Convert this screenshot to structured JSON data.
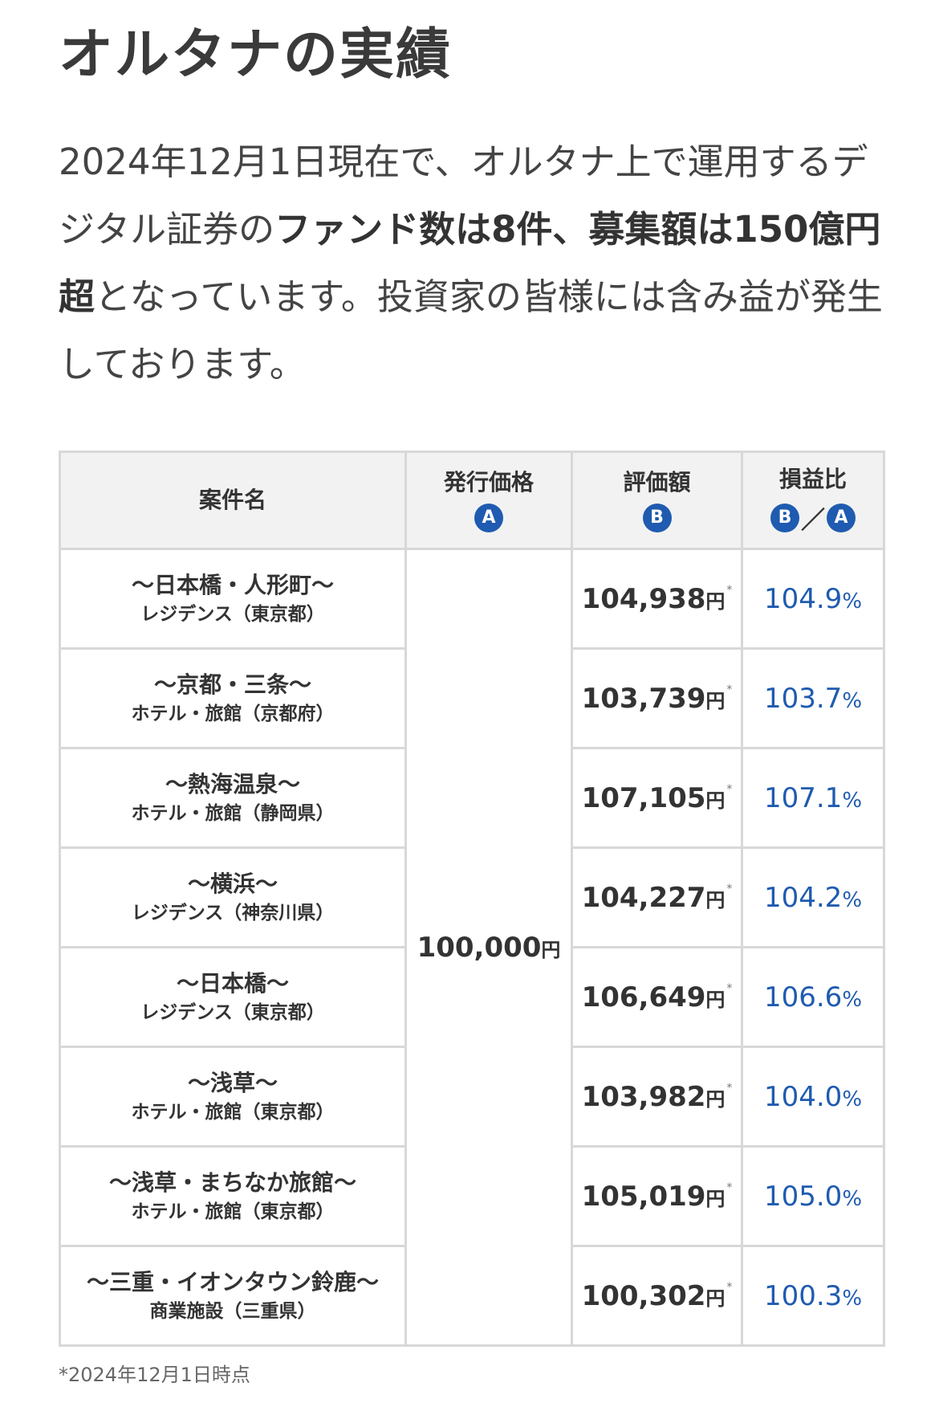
{
  "title": "オルタナの実績",
  "intro": {
    "part1": "2024年12月1日現在で、オルタナ上で運用するデジタル証券の",
    "bold1": "ファンド数は8件、募集額は150億円超",
    "part2": "となっています。投資家の皆様には含み益が発生しております。"
  },
  "table": {
    "headers": {
      "name": "案件名",
      "issue": "発行価格",
      "issue_mark": "A",
      "value": "評価額",
      "value_mark": "B",
      "ratio": "損益比",
      "ratio_mark_b": "B",
      "ratio_slash": "／",
      "ratio_mark_a": "A"
    },
    "issue_price": "100,000",
    "yen": "円",
    "star": "*",
    "pct": "%",
    "rows": [
      {
        "name": "〜日本橋・人形町〜",
        "sub": "レジデンス（東京都）",
        "value": "104,938",
        "ratio": "104.9"
      },
      {
        "name": "〜京都・三条〜",
        "sub": "ホテル・旅館（京都府）",
        "value": "103,739",
        "ratio": "103.7"
      },
      {
        "name": "〜熱海温泉〜",
        "sub": "ホテル・旅館（静岡県）",
        "value": "107,105",
        "ratio": "107.1"
      },
      {
        "name": "〜横浜〜",
        "sub": "レジデンス（神奈川県）",
        "value": "104,227",
        "ratio": "104.2"
      },
      {
        "name": "〜日本橋〜",
        "sub": "レジデンス（東京都）",
        "value": "106,649",
        "ratio": "106.6"
      },
      {
        "name": "〜浅草〜",
        "sub": "ホテル・旅館（東京都）",
        "value": "103,982",
        "ratio": "104.0"
      },
      {
        "name": "〜浅草・まちなか旅館〜",
        "sub": "ホテル・旅館（東京都）",
        "value": "105,019",
        "ratio": "105.0"
      },
      {
        "name": "〜三重・イオンタウン鈴鹿〜",
        "sub": "商業施設（三重県）",
        "value": "100,302",
        "ratio": "100.3"
      }
    ]
  },
  "note": "*2024年12月1日時点",
  "colors": {
    "accent": "#1f5bb0",
    "header_bg": "#f2f2f2",
    "border": "#d8d8d8"
  }
}
